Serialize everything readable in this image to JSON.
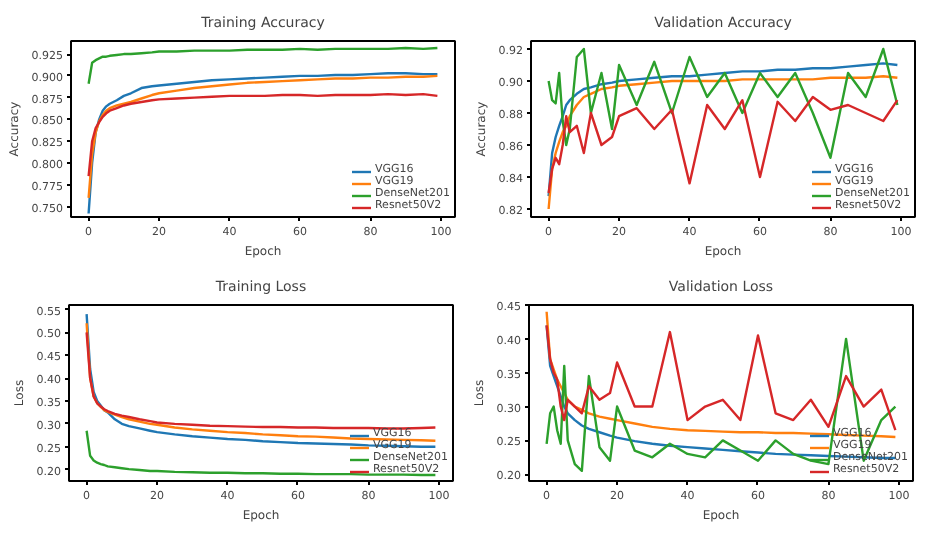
{
  "chart_data": [
    {
      "type": "line",
      "title": "Training Accuracy",
      "xlabel": "Epoch",
      "ylabel": "Accuracy",
      "legend": "bottom right",
      "grid": false,
      "x": [
        0,
        1,
        2,
        3,
        4,
        5,
        6,
        8,
        10,
        12,
        15,
        18,
        20,
        25,
        30,
        35,
        40,
        45,
        50,
        55,
        60,
        65,
        70,
        75,
        80,
        85,
        90,
        95,
        99
      ],
      "xlim": [
        -5,
        104
      ],
      "xticks": [
        0,
        20,
        40,
        60,
        80,
        100
      ],
      "ylim": [
        0.738,
        0.94
      ],
      "yticks": [
        {
          "value": 0.75,
          "label": "0.750"
        },
        {
          "value": 0.775,
          "label": "0.775"
        },
        {
          "value": 0.8,
          "label": "0.800"
        },
        {
          "value": 0.825,
          "label": "0.825"
        },
        {
          "value": 0.85,
          "label": "0.850"
        },
        {
          "value": 0.875,
          "label": "0.875"
        },
        {
          "value": 0.9,
          "label": "0.900"
        },
        {
          "value": 0.925,
          "label": "0.925"
        }
      ],
      "series": [
        {
          "name": "VGG16",
          "color": "#1f77b4",
          "values": [
            0.742,
            0.8,
            0.835,
            0.85,
            0.86,
            0.865,
            0.868,
            0.872,
            0.877,
            0.88,
            0.886,
            0.888,
            0.889,
            0.891,
            0.893,
            0.895,
            0.896,
            0.897,
            0.898,
            0.899,
            0.9,
            0.9,
            0.901,
            0.901,
            0.902,
            0.903,
            0.903,
            0.902,
            0.902
          ]
        },
        {
          "name": "VGG19",
          "color": "#ff7f0e",
          "values": [
            0.76,
            0.81,
            0.835,
            0.848,
            0.855,
            0.86,
            0.863,
            0.866,
            0.868,
            0.87,
            0.874,
            0.878,
            0.88,
            0.883,
            0.886,
            0.888,
            0.89,
            0.892,
            0.893,
            0.894,
            0.895,
            0.896,
            0.897,
            0.897,
            0.898,
            0.898,
            0.899,
            0.899,
            0.9
          ]
        },
        {
          "name": "DenseNet201",
          "color": "#2ca02c",
          "values": [
            0.891,
            0.915,
            0.918,
            0.92,
            0.922,
            0.922,
            0.923,
            0.924,
            0.925,
            0.925,
            0.926,
            0.927,
            0.928,
            0.928,
            0.929,
            0.929,
            0.929,
            0.93,
            0.93,
            0.93,
            0.931,
            0.93,
            0.931,
            0.931,
            0.931,
            0.931,
            0.932,
            0.931,
            0.932
          ]
        },
        {
          "name": "Resnet50V2",
          "color": "#d62728",
          "values": [
            0.785,
            0.825,
            0.84,
            0.847,
            0.853,
            0.857,
            0.86,
            0.863,
            0.866,
            0.868,
            0.87,
            0.872,
            0.873,
            0.874,
            0.875,
            0.876,
            0.877,
            0.877,
            0.877,
            0.878,
            0.878,
            0.877,
            0.878,
            0.878,
            0.878,
            0.879,
            0.878,
            0.879,
            0.877
          ]
        }
      ]
    },
    {
      "type": "line",
      "title": "Validation Accuracy",
      "xlabel": "Epoch",
      "ylabel": "Accuracy",
      "legend": "bottom right",
      "grid": false,
      "x": [
        0,
        1,
        2,
        3,
        4,
        5,
        6,
        8,
        10,
        12,
        15,
        18,
        20,
        25,
        30,
        35,
        40,
        45,
        50,
        55,
        60,
        65,
        70,
        75,
        80,
        85,
        90,
        95,
        99
      ],
      "xlim": [
        -5,
        104
      ],
      "xticks": [
        0,
        20,
        40,
        60,
        80,
        100
      ],
      "ylim": [
        0.815,
        0.925
      ],
      "yticks": [
        0.82,
        0.84,
        0.86,
        0.88,
        {
          "value": 0.9,
          "label": "0.90"
        },
        0.92
      ],
      "series": [
        {
          "name": "VGG16",
          "color": "#1f77b4",
          "values": [
            0.828,
            0.855,
            0.865,
            0.872,
            0.878,
            0.885,
            0.888,
            0.892,
            0.895,
            0.896,
            0.898,
            0.899,
            0.9,
            0.901,
            0.902,
            0.903,
            0.903,
            0.904,
            0.905,
            0.906,
            0.906,
            0.907,
            0.907,
            0.908,
            0.908,
            0.909,
            0.91,
            0.911,
            0.91
          ]
        },
        {
          "name": "VGG19",
          "color": "#ff7f0e",
          "values": [
            0.82,
            0.845,
            0.855,
            0.862,
            0.868,
            0.872,
            0.878,
            0.885,
            0.89,
            0.892,
            0.895,
            0.896,
            0.897,
            0.898,
            0.899,
            0.9,
            0.9,
            0.9,
            0.9,
            0.901,
            0.901,
            0.901,
            0.901,
            0.901,
            0.902,
            0.902,
            0.902,
            0.903,
            0.902
          ]
        },
        {
          "name": "DenseNet201",
          "color": "#2ca02c",
          "values": [
            0.9,
            0.888,
            0.886,
            0.905,
            0.875,
            0.86,
            0.87,
            0.915,
            0.92,
            0.88,
            0.905,
            0.87,
            0.91,
            0.885,
            0.912,
            0.88,
            0.915,
            0.89,
            0.905,
            0.88,
            0.905,
            0.89,
            0.905,
            0.88,
            0.852,
            0.905,
            0.89,
            0.92,
            0.885
          ]
        },
        {
          "name": "Resnet50V2",
          "color": "#d62728",
          "values": [
            0.83,
            0.845,
            0.852,
            0.848,
            0.86,
            0.878,
            0.868,
            0.872,
            0.855,
            0.88,
            0.86,
            0.865,
            0.878,
            0.883,
            0.87,
            0.882,
            0.836,
            0.885,
            0.87,
            0.888,
            0.84,
            0.887,
            0.875,
            0.89,
            0.882,
            0.885,
            0.88,
            0.875,
            0.888
          ]
        }
      ]
    },
    {
      "type": "line",
      "title": "Training Loss",
      "xlabel": "Epoch",
      "ylabel": "Loss",
      "legend": "bottom right",
      "grid": false,
      "x": [
        0,
        1,
        2,
        3,
        4,
        5,
        6,
        8,
        10,
        12,
        15,
        18,
        20,
        25,
        30,
        35,
        40,
        45,
        50,
        55,
        60,
        65,
        70,
        75,
        80,
        85,
        90,
        95,
        99
      ],
      "xlim": [
        -5,
        104
      ],
      "xticks": [
        0,
        20,
        40,
        60,
        80,
        100
      ],
      "ylim": [
        0.175,
        0.56
      ],
      "yticks": [
        {
          "value": 0.2,
          "label": "0.20"
        },
        0.25,
        {
          "value": 0.3,
          "label": "0.30"
        },
        0.35,
        {
          "value": 0.4,
          "label": "0.40"
        },
        0.45,
        {
          "value": 0.5,
          "label": "0.50"
        },
        0.55
      ],
      "series": [
        {
          "name": "VGG16",
          "color": "#1f77b4",
          "values": [
            0.54,
            0.42,
            0.37,
            0.35,
            0.34,
            0.33,
            0.325,
            0.31,
            0.3,
            0.295,
            0.29,
            0.285,
            0.282,
            0.277,
            0.273,
            0.27,
            0.267,
            0.265,
            0.262,
            0.26,
            0.258,
            0.257,
            0.256,
            0.255,
            0.253,
            0.252,
            0.251,
            0.25,
            0.25
          ]
        },
        {
          "name": "VGG19",
          "color": "#ff7f0e",
          "values": [
            0.52,
            0.4,
            0.36,
            0.345,
            0.337,
            0.33,
            0.326,
            0.32,
            0.315,
            0.31,
            0.305,
            0.3,
            0.298,
            0.292,
            0.288,
            0.285,
            0.282,
            0.28,
            0.277,
            0.275,
            0.273,
            0.272,
            0.27,
            0.268,
            0.267,
            0.266,
            0.265,
            0.264,
            0.263
          ]
        },
        {
          "name": "DenseNet201",
          "color": "#2ca02c",
          "values": [
            0.285,
            0.23,
            0.22,
            0.215,
            0.212,
            0.21,
            0.207,
            0.205,
            0.203,
            0.201,
            0.199,
            0.197,
            0.197,
            0.195,
            0.194,
            0.193,
            0.193,
            0.192,
            0.192,
            0.191,
            0.191,
            0.19,
            0.19,
            0.19,
            0.189,
            0.189,
            0.189,
            0.188,
            0.188
          ]
        },
        {
          "name": "Resnet50V2",
          "color": "#d62728",
          "values": [
            0.5,
            0.4,
            0.36,
            0.345,
            0.338,
            0.332,
            0.328,
            0.322,
            0.318,
            0.315,
            0.31,
            0.306,
            0.303,
            0.3,
            0.298,
            0.296,
            0.295,
            0.294,
            0.293,
            0.293,
            0.292,
            0.292,
            0.291,
            0.291,
            0.291,
            0.29,
            0.29,
            0.291,
            0.292
          ]
        }
      ]
    },
    {
      "type": "line",
      "title": "Validation Loss",
      "xlabel": "Epoch",
      "ylabel": "Loss",
      "legend": "bottom right",
      "grid": false,
      "x": [
        0,
        1,
        2,
        3,
        4,
        5,
        6,
        8,
        10,
        12,
        15,
        18,
        20,
        25,
        30,
        35,
        40,
        45,
        50,
        55,
        60,
        65,
        70,
        75,
        80,
        85,
        90,
        95,
        99
      ],
      "xlim": [
        -5,
        104
      ],
      "xticks": [
        0,
        20,
        40,
        60,
        80,
        100
      ],
      "ylim": [
        0.19,
        0.45
      ],
      "yticks": [
        {
          "value": 0.2,
          "label": "0.20"
        },
        0.25,
        {
          "value": 0.3,
          "label": "0.30"
        },
        0.35,
        {
          "value": 0.4,
          "label": "0.40"
        },
        0.45
      ],
      "series": [
        {
          "name": "VGG16",
          "color": "#1f77b4",
          "values": [
            0.42,
            0.36,
            0.345,
            0.33,
            0.315,
            0.3,
            0.29,
            0.28,
            0.272,
            0.267,
            0.262,
            0.257,
            0.254,
            0.249,
            0.245,
            0.242,
            0.24,
            0.238,
            0.236,
            0.234,
            0.232,
            0.23,
            0.229,
            0.228,
            0.227,
            0.226,
            0.225,
            0.224,
            0.224
          ]
        },
        {
          "name": "VGG19",
          "color": "#ff7f0e",
          "values": [
            0.44,
            0.37,
            0.355,
            0.34,
            0.33,
            0.32,
            0.31,
            0.3,
            0.295,
            0.29,
            0.285,
            0.282,
            0.28,
            0.275,
            0.27,
            0.267,
            0.265,
            0.264,
            0.263,
            0.262,
            0.262,
            0.261,
            0.261,
            0.26,
            0.259,
            0.258,
            0.257,
            0.256,
            0.255
          ]
        },
        {
          "name": "DenseNet201",
          "color": "#2ca02c",
          "values": [
            0.245,
            0.29,
            0.3,
            0.265,
            0.245,
            0.36,
            0.25,
            0.215,
            0.205,
            0.345,
            0.24,
            0.22,
            0.3,
            0.235,
            0.225,
            0.245,
            0.23,
            0.225,
            0.25,
            0.235,
            0.22,
            0.25,
            0.23,
            0.22,
            0.215,
            0.4,
            0.22,
            0.28,
            0.3
          ]
        },
        {
          "name": "Resnet50V2",
          "color": "#d62728",
          "values": [
            0.42,
            0.37,
            0.35,
            0.34,
            0.3,
            0.28,
            0.31,
            0.3,
            0.29,
            0.33,
            0.31,
            0.32,
            0.365,
            0.3,
            0.3,
            0.41,
            0.28,
            0.3,
            0.31,
            0.28,
            0.405,
            0.29,
            0.28,
            0.31,
            0.27,
            0.345,
            0.3,
            0.325,
            0.265
          ]
        }
      ]
    }
  ]
}
